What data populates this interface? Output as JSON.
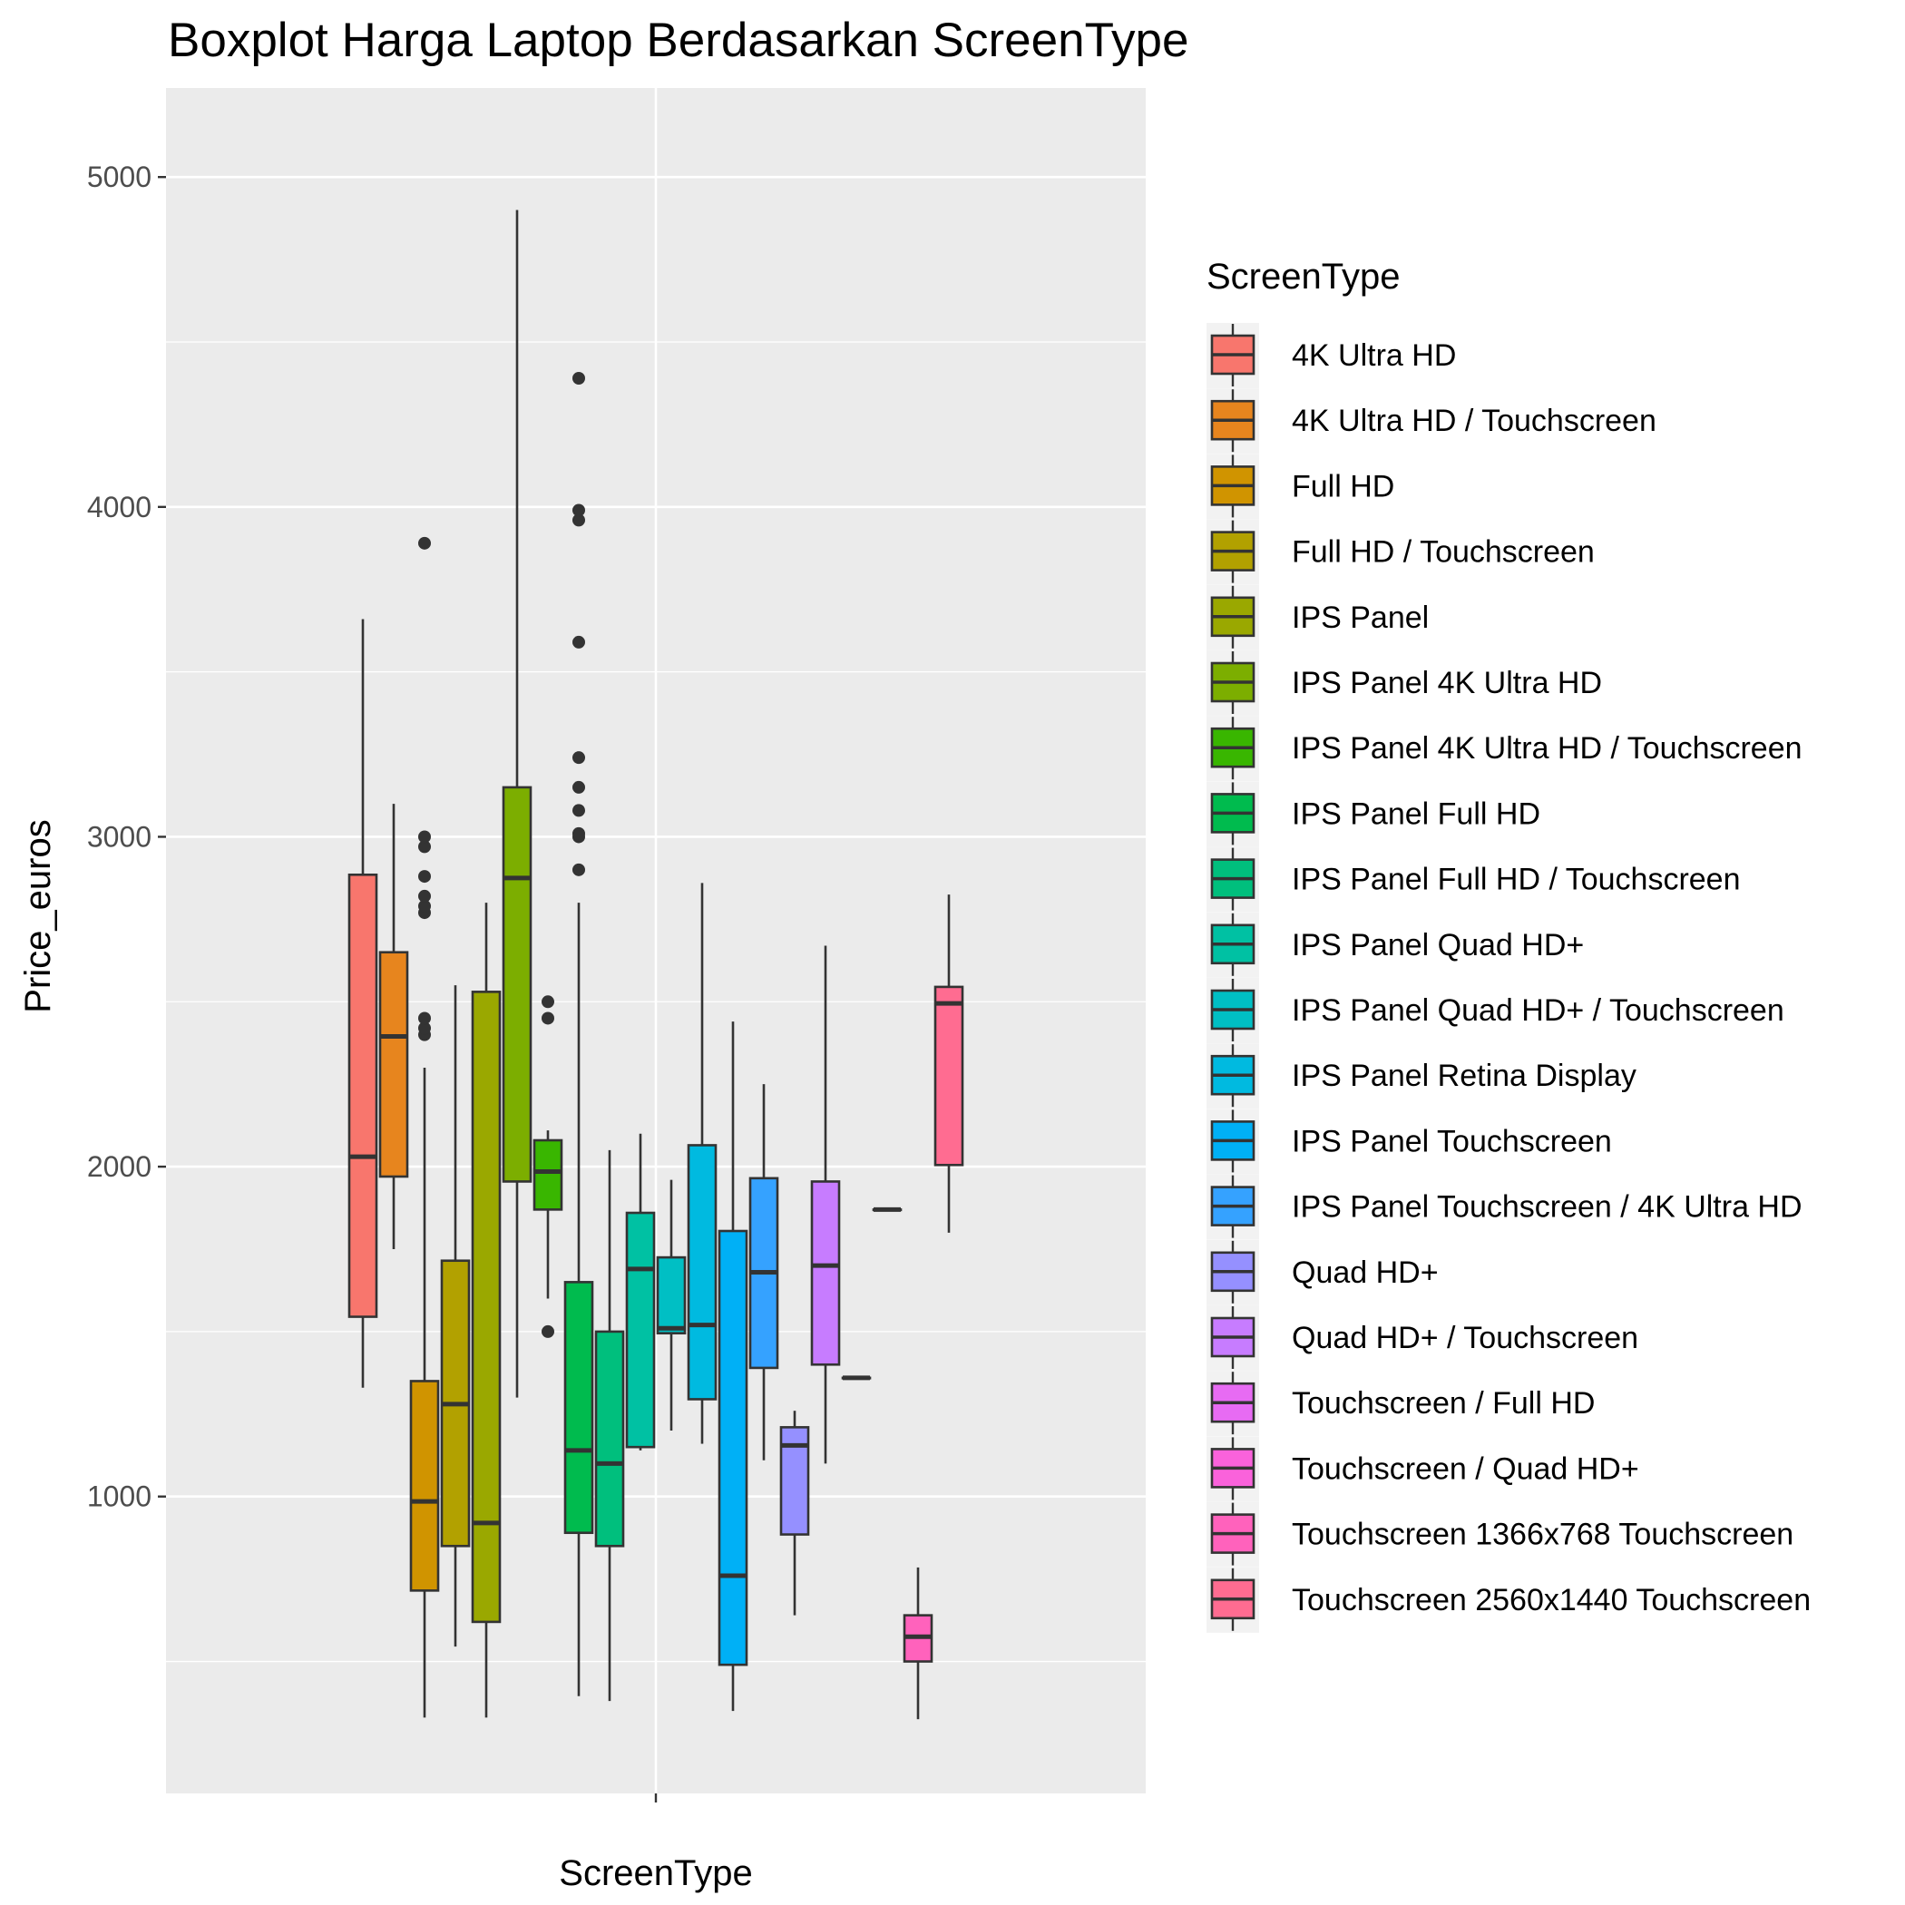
{
  "chart_data": {
    "type": "boxplot",
    "title": "Boxplot Harga Laptop Berdasarkan ScreenType",
    "xlabel": "ScreenType",
    "ylabel": "Price_euros",
    "ylim": [
      100,
      5270
    ],
    "yticks": [
      1000,
      2000,
      3000,
      4000,
      5000
    ],
    "grid": true,
    "legend_title": "ScreenType",
    "legend_position": "right",
    "series": [
      {
        "name": "4K Ultra HD",
        "color": "#F8766D",
        "min": 1330,
        "q1": 1545,
        "median": 2030,
        "q3": 2885,
        "max": 3660,
        "outliers": []
      },
      {
        "name": "4K Ultra HD / Touchscreen",
        "color": "#E7851E",
        "min": 1750,
        "q1": 1970,
        "median": 2395,
        "q3": 2650,
        "max": 3100,
        "outliers": []
      },
      {
        "name": "Full HD",
        "color": "#D09400",
        "min": 330,
        "q1": 715,
        "median": 985,
        "q3": 1350,
        "max": 2300,
        "outliers": [
          2400,
          2420,
          2450,
          2770,
          2790,
          2820,
          2880,
          2970,
          3000,
          3890
        ]
      },
      {
        "name": "Full HD / Touchscreen",
        "color": "#B2A100",
        "min": 545,
        "q1": 850,
        "median": 1280,
        "q3": 1715,
        "max": 2550,
        "outliers": []
      },
      {
        "name": "IPS Panel",
        "color": "#9AA800",
        "min": 330,
        "q1": 620,
        "median": 920,
        "q3": 2530,
        "max": 2800,
        "outliers": []
      },
      {
        "name": "IPS Panel 4K Ultra HD",
        "color": "#7CAE00",
        "min": 1300,
        "q1": 1955,
        "median": 2875,
        "q3": 3150,
        "max": 4900,
        "outliers": []
      },
      {
        "name": "IPS Panel 4K Ultra HD / Touchscreen",
        "color": "#39B600",
        "min": 1600,
        "q1": 1870,
        "median": 1985,
        "q3": 2080,
        "max": 2110,
        "outliers": [
          1500,
          2450,
          2500
        ]
      },
      {
        "name": "IPS Panel Full HD",
        "color": "#00BB4E",
        "min": 395,
        "q1": 890,
        "median": 1140,
        "q3": 1650,
        "max": 2800,
        "outliers": [
          2900,
          3000,
          3010,
          3080,
          3150,
          3240,
          3590,
          3960,
          3990,
          4390
        ]
      },
      {
        "name": "IPS Panel Full HD / Touchscreen",
        "color": "#00BF7D",
        "min": 380,
        "q1": 850,
        "median": 1100,
        "q3": 1500,
        "max": 2050,
        "outliers": []
      },
      {
        "name": "IPS Panel Quad HD+",
        "color": "#00C1A3",
        "min": 1140,
        "q1": 1150,
        "median": 1690,
        "q3": 1860,
        "max": 2100,
        "outliers": []
      },
      {
        "name": "IPS Panel Quad HD+ / Touchscreen",
        "color": "#00BFC4",
        "min": 1200,
        "q1": 1495,
        "median": 1510,
        "q3": 1725,
        "max": 1960,
        "outliers": []
      },
      {
        "name": "IPS Panel Retina Display",
        "color": "#00BAE0",
        "min": 1160,
        "q1": 1295,
        "median": 1520,
        "q3": 2065,
        "max": 2860,
        "outliers": []
      },
      {
        "name": "IPS Panel Touchscreen",
        "color": "#00B0F6",
        "min": 350,
        "q1": 490,
        "median": 760,
        "q3": 1805,
        "max": 2440,
        "outliers": []
      },
      {
        "name": "IPS Panel Touchscreen / 4K Ultra HD",
        "color": "#35A2FF",
        "min": 1110,
        "q1": 1390,
        "median": 1680,
        "q3": 1965,
        "max": 2250,
        "outliers": []
      },
      {
        "name": "Quad HD+",
        "color": "#9590FF",
        "min": 640,
        "q1": 885,
        "median": 1155,
        "q3": 1210,
        "max": 1260,
        "outliers": []
      },
      {
        "name": "Quad HD+ / Touchscreen",
        "color": "#C77CFF",
        "min": 1100,
        "q1": 1400,
        "median": 1700,
        "q3": 1955,
        "max": 2670,
        "outliers": []
      },
      {
        "name": "Touchscreen / Full HD",
        "color": "#E76BF3",
        "min": 1360,
        "q1": 1360,
        "median": 1360,
        "q3": 1360,
        "max": 1360,
        "outliers": []
      },
      {
        "name": "Touchscreen / Quad HD+",
        "color": "#FA62DB",
        "min": 1870,
        "q1": 1870,
        "median": 1870,
        "q3": 1870,
        "max": 1870,
        "outliers": []
      },
      {
        "name": "Touchscreen 1366x768 Touchscreen",
        "color": "#FF62BC",
        "min": 325,
        "q1": 500,
        "median": 575,
        "q3": 640,
        "max": 785,
        "outliers": []
      },
      {
        "name": "Touchscreen 2560x1440 Touchscreen",
        "color": "#FF6C91",
        "min": 1800,
        "q1": 2005,
        "median": 2495,
        "q3": 2545,
        "max": 2825,
        "outliers": []
      }
    ]
  }
}
